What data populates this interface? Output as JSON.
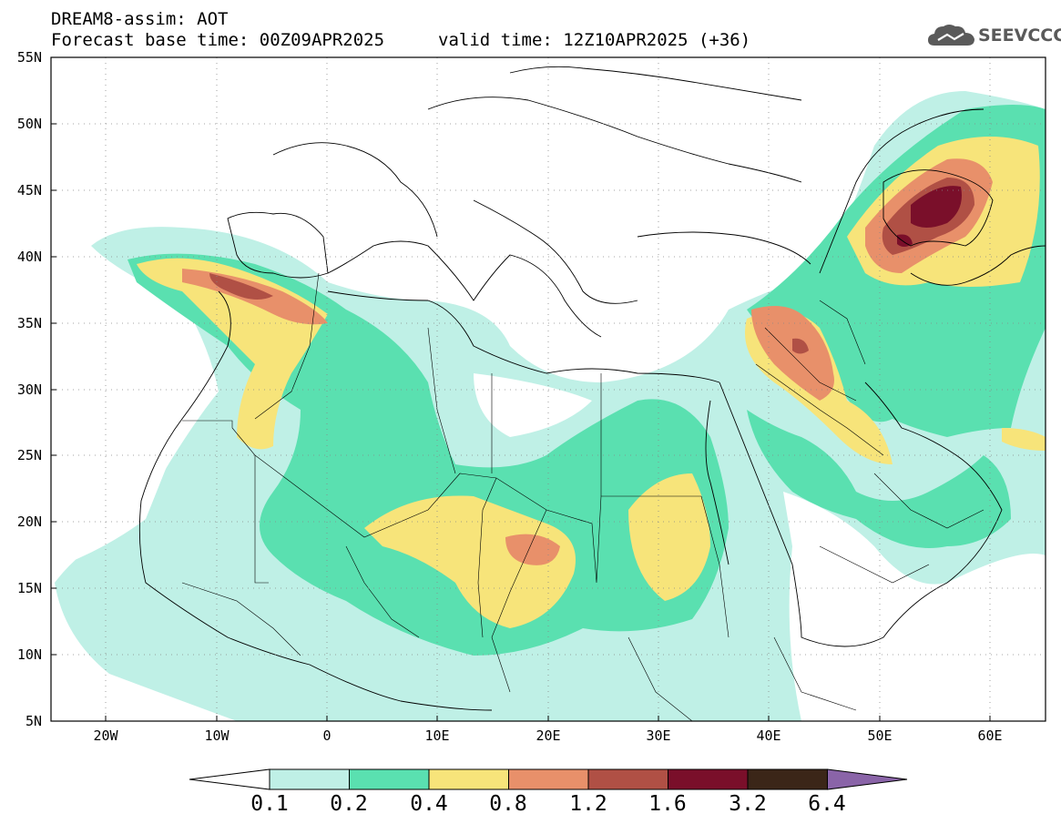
{
  "header": {
    "title": "DREAM8-assim: AOT",
    "base_time": "Forecast base time: 00Z09APR2025",
    "valid_time": "valid time: 12Z10APR2025 (+36)"
  },
  "logo": {
    "text": "SEEVCCC",
    "icon": "cloud-icon"
  },
  "axes": {
    "lat_labels": [
      "55N",
      "50N",
      "45N",
      "40N",
      "35N",
      "30N",
      "25N",
      "20N",
      "15N",
      "10N",
      "5N"
    ],
    "lon_labels": [
      "20W",
      "10W",
      "0",
      "10E",
      "20E",
      "30E",
      "40E",
      "50E",
      "60E"
    ],
    "lat_range": [
      5,
      55
    ],
    "lon_range": [
      -25,
      65
    ],
    "grid": "dotted"
  },
  "colorbar": {
    "labels": [
      "0.1",
      "0.2",
      "0.4",
      "0.8",
      "1.2",
      "1.6",
      "3.2",
      "6.4"
    ],
    "colors": [
      "#ffffff",
      "#bff0e6",
      "#5ae0b0",
      "#f7e47a",
      "#e8906a",
      "#b05045",
      "#7a0f2a",
      "#3b2618",
      "#8a64a8"
    ]
  },
  "field_colors": {
    "c1": "#bff0e6",
    "c2": "#5ae0b0",
    "c3": "#f7e47a",
    "c4": "#e8906a",
    "c5": "#b05045",
    "c6": "#7a0f2a"
  }
}
